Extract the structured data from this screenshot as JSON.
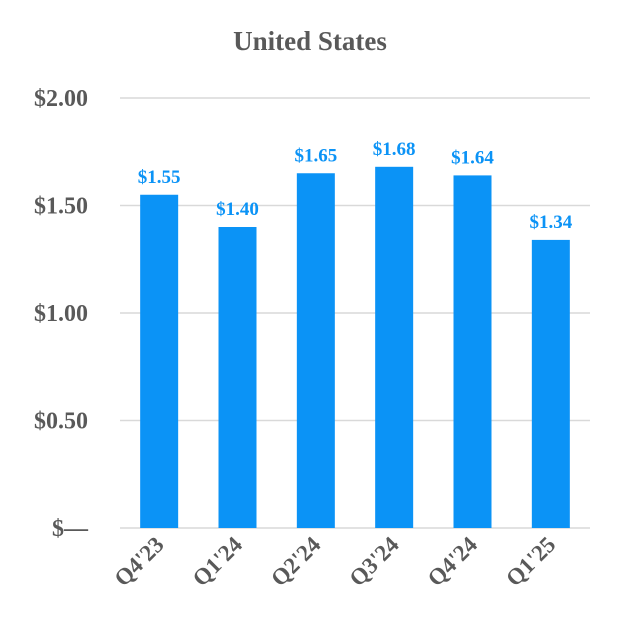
{
  "chart_data": {
    "type": "bar",
    "title": "United States",
    "xlabel": "",
    "ylabel": "",
    "categories": [
      "Q4'23",
      "Q1'24",
      "Q2'24",
      "Q3'24",
      "Q4'24",
      "Q1'25"
    ],
    "values": [
      1.55,
      1.4,
      1.65,
      1.68,
      1.64,
      1.34
    ],
    "data_labels": [
      "$1.55",
      "$1.40",
      "$1.65",
      "$1.68",
      "$1.64",
      "$1.34"
    ],
    "ylim": [
      0,
      2.0
    ],
    "yticks": [
      0,
      0.5,
      1.0,
      1.5,
      2.0
    ],
    "ytick_labels": [
      "$—",
      "$0.50",
      "$1.00",
      "$1.50",
      "$2.00"
    ],
    "grid": true,
    "legend": "none",
    "colors": {
      "bar": "#0B93F6",
      "data_label": "#0B93F6",
      "text": "#595959",
      "grid": "#D9D9D9"
    }
  }
}
